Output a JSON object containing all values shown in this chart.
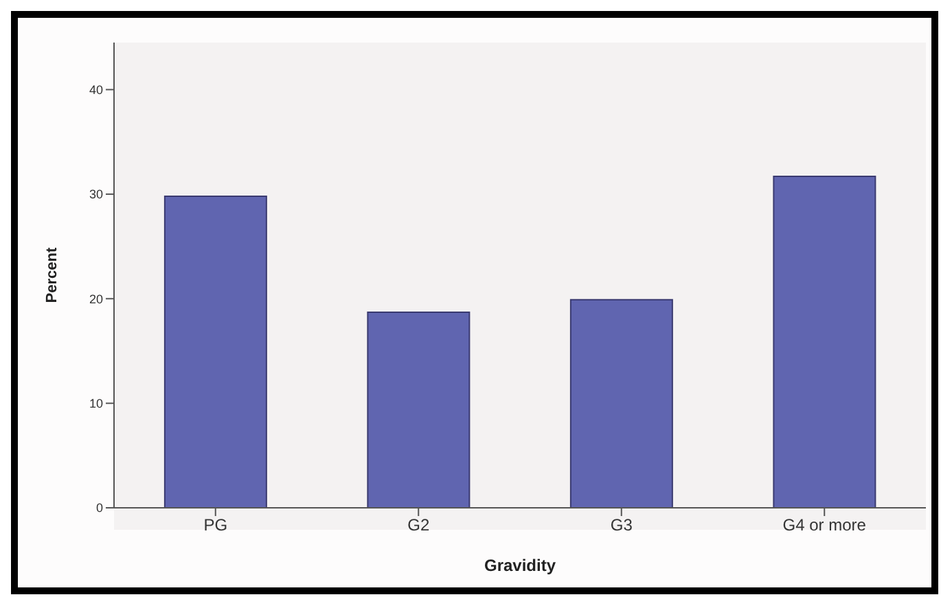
{
  "chart_data": {
    "type": "bar",
    "xlabel": "Gravidity",
    "ylabel": "Percent",
    "categories": [
      "PG",
      "G2",
      "G3",
      "G4 or more"
    ],
    "values": [
      29.8,
      18.7,
      19.9,
      31.7
    ],
    "color": "#6065b0",
    "ylim": [
      0,
      44.5
    ],
    "yticks": [
      0,
      10,
      20,
      30,
      40
    ],
    "grid": false
  }
}
